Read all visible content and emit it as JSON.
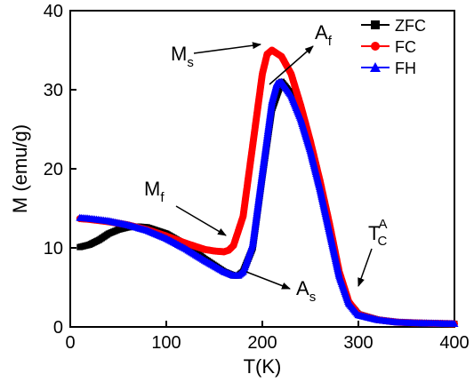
{
  "chart_data": {
    "type": "scatter",
    "xlabel": "T(K)",
    "ylabel": "M (emu/g)",
    "xlim": [
      0,
      400
    ],
    "ylim": [
      0,
      40
    ],
    "xticks": [
      0,
      100,
      200,
      300,
      400
    ],
    "yticks": [
      0,
      10,
      20,
      30,
      40
    ],
    "grid": false,
    "legend_position": "top-right",
    "series": [
      {
        "name": "ZFC",
        "color": "#000000",
        "marker": "square",
        "x": [
          10,
          20,
          30,
          40,
          50,
          60,
          70,
          80,
          100,
          120,
          140,
          160,
          170,
          175,
          180,
          190,
          200,
          210,
          220,
          230,
          240,
          250,
          260,
          270,
          280,
          290,
          300,
          320,
          340,
          360,
          380,
          400
        ],
        "y": [
          10.1,
          10.4,
          11.0,
          11.8,
          12.3,
          12.6,
          12.7,
          12.6,
          11.8,
          10.4,
          8.6,
          7.0,
          6.5,
          6.5,
          7.0,
          10.0,
          19.0,
          27.5,
          31.0,
          29.5,
          26.5,
          22.5,
          17.5,
          12.0,
          6.5,
          3.0,
          1.6,
          0.9,
          0.6,
          0.5,
          0.45,
          0.4
        ]
      },
      {
        "name": "FC",
        "color": "#ff0000",
        "marker": "circle",
        "x": [
          10,
          20,
          40,
          60,
          80,
          100,
          120,
          140,
          150,
          160,
          165,
          170,
          180,
          190,
          200,
          205,
          210,
          220,
          230,
          240,
          250,
          260,
          270,
          280,
          290,
          300,
          320,
          340,
          360,
          380,
          400
        ],
        "y": [
          13.7,
          13.6,
          13.3,
          12.9,
          12.3,
          11.5,
          10.6,
          9.8,
          9.6,
          9.5,
          9.7,
          10.3,
          14.0,
          23.0,
          32.0,
          34.5,
          35.0,
          34.2,
          32.0,
          28.0,
          23.5,
          18.5,
          13.0,
          7.0,
          3.2,
          1.6,
          0.9,
          0.6,
          0.5,
          0.45,
          0.4
        ]
      },
      {
        "name": "FH",
        "color": "#0000ff",
        "marker": "triangle",
        "x": [
          10,
          20,
          40,
          60,
          80,
          100,
          120,
          140,
          160,
          170,
          175,
          180,
          190,
          200,
          210,
          215,
          220,
          230,
          240,
          250,
          260,
          270,
          280,
          290,
          300,
          320,
          340,
          360,
          380,
          400
        ],
        "y": [
          13.8,
          13.7,
          13.4,
          12.9,
          12.2,
          11.2,
          9.9,
          8.4,
          7.0,
          6.5,
          6.5,
          7.0,
          10.5,
          19.5,
          28.5,
          30.8,
          31.0,
          29.3,
          26.3,
          22.3,
          17.5,
          12.0,
          6.5,
          3.0,
          1.5,
          0.9,
          0.6,
          0.5,
          0.45,
          0.4
        ]
      }
    ],
    "annotations": {
      "ms": {
        "main": "M",
        "sub": "s"
      },
      "af": {
        "main": "A",
        "sub": "f"
      },
      "mf": {
        "main": "M",
        "sub": "f"
      },
      "as": {
        "main": "A",
        "sub": "s"
      },
      "tc": {
        "main": "T",
        "sub": "C",
        "sup": "A"
      }
    }
  }
}
